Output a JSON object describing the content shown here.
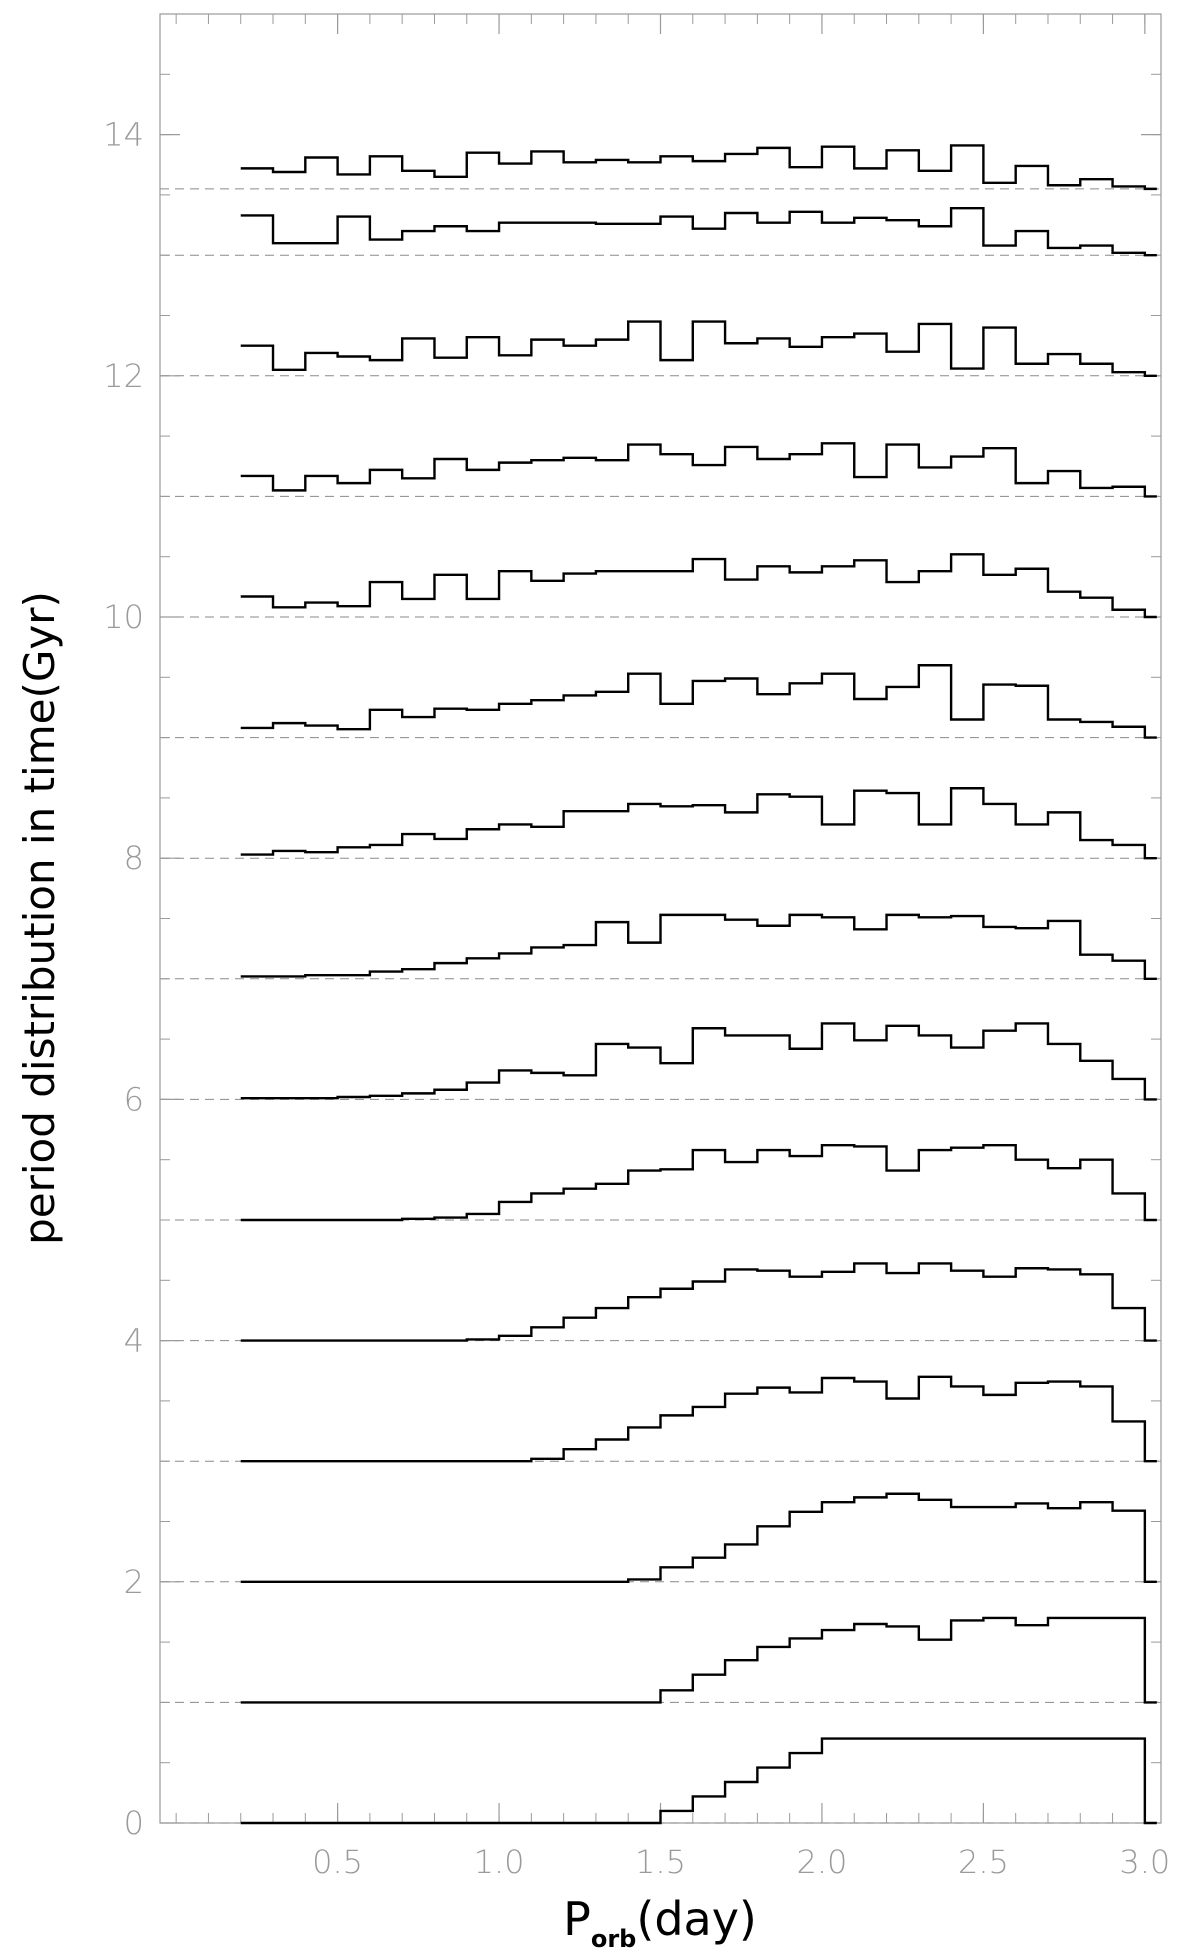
{
  "chart_data": {
    "type": "line",
    "style": "step histograms stacked at vertical offsets (one per time snapshot), each with a dashed baseline",
    "xlabel": "P",
    "xlabel_sub": "orb",
    "xlabel_unit": "(day)",
    "ylabel": "period distribution in time(Gyr)",
    "xlim": [
      -0.05,
      3.05
    ],
    "ylim": [
      0,
      15
    ],
    "grid": false,
    "x_ticks": [
      0.5,
      1.0,
      1.5,
      2.0,
      2.5,
      3.0
    ],
    "x_tick_labels": [
      "0.5",
      "1.0",
      "1.5",
      "2.0",
      "2.5",
      "3.0"
    ],
    "x_minor_step": 0.1,
    "y_ticks": [
      0,
      2,
      4,
      6,
      8,
      10,
      12,
      14
    ],
    "y_tick_labels": [
      "0",
      "2",
      "4",
      "6",
      "8",
      "10",
      "12",
      "14"
    ],
    "y_minor_step": 0.5,
    "bin_edges": [
      0.2,
      0.3,
      0.4,
      0.5,
      0.6,
      0.7,
      0.8,
      0.9,
      1.0,
      1.1,
      1.2,
      1.3,
      1.4,
      1.5,
      1.6,
      1.7,
      1.8,
      1.9,
      2.0,
      2.1,
      2.2,
      2.3,
      2.4,
      2.5,
      2.6,
      2.7,
      2.8,
      2.9,
      3.0
    ],
    "series": [
      {
        "offset": 0,
        "values": [
          0,
          0,
          0,
          0,
          0,
          0,
          0,
          0,
          0,
          0,
          0,
          0,
          0,
          0.1,
          0.22,
          0.34,
          0.46,
          0.58,
          0.7,
          0.7,
          0.7,
          0.7,
          0.7,
          0.7,
          0.7,
          0.7,
          0.7,
          0.7
        ]
      },
      {
        "offset": 1,
        "values": [
          0,
          0,
          0,
          0,
          0,
          0,
          0,
          0,
          0,
          0,
          0,
          0,
          0,
          0.1,
          0.23,
          0.35,
          0.46,
          0.53,
          0.6,
          0.65,
          0.63,
          0.52,
          0.68,
          0.7,
          0.64,
          0.7,
          0.7,
          0.7
        ]
      },
      {
        "offset": 2,
        "values": [
          0,
          0,
          0,
          0,
          0,
          0,
          0,
          0,
          0,
          0,
          0,
          0,
          0.02,
          0.12,
          0.2,
          0.31,
          0.46,
          0.58,
          0.66,
          0.7,
          0.73,
          0.68,
          0.62,
          0.62,
          0.65,
          0.61,
          0.66,
          0.59
        ]
      },
      {
        "offset": 3,
        "values": [
          0,
          0,
          0,
          0,
          0,
          0,
          0,
          0,
          0,
          0.02,
          0.1,
          0.18,
          0.28,
          0.38,
          0.45,
          0.56,
          0.61,
          0.57,
          0.69,
          0.66,
          0.52,
          0.7,
          0.62,
          0.55,
          0.65,
          0.66,
          0.62,
          0.33
        ]
      },
      {
        "offset": 4,
        "values": [
          0,
          0,
          0,
          0,
          0,
          0,
          0,
          0.01,
          0.04,
          0.11,
          0.19,
          0.27,
          0.36,
          0.43,
          0.49,
          0.59,
          0.58,
          0.53,
          0.57,
          0.64,
          0.56,
          0.64,
          0.58,
          0.53,
          0.6,
          0.59,
          0.55,
          0.27
        ]
      },
      {
        "offset": 5,
        "values": [
          0,
          0,
          0,
          0,
          0,
          0.01,
          0.02,
          0.05,
          0.15,
          0.22,
          0.26,
          0.3,
          0.41,
          0.42,
          0.58,
          0.48,
          0.58,
          0.53,
          0.62,
          0.61,
          0.41,
          0.58,
          0.6,
          0.62,
          0.5,
          0.43,
          0.5,
          0.22
        ]
      },
      {
        "offset": 6,
        "values": [
          0.01,
          0.01,
          0.01,
          0.02,
          0.03,
          0.05,
          0.08,
          0.14,
          0.24,
          0.22,
          0.2,
          0.46,
          0.43,
          0.3,
          0.59,
          0.53,
          0.53,
          0.42,
          0.63,
          0.49,
          0.61,
          0.53,
          0.43,
          0.57,
          0.63,
          0.46,
          0.32,
          0.17
        ]
      },
      {
        "offset": 7,
        "values": [
          0.02,
          0.02,
          0.03,
          0.03,
          0.06,
          0.08,
          0.13,
          0.17,
          0.21,
          0.26,
          0.28,
          0.47,
          0.3,
          0.53,
          0.53,
          0.49,
          0.44,
          0.53,
          0.51,
          0.41,
          0.53,
          0.51,
          0.52,
          0.43,
          0.42,
          0.48,
          0.2,
          0.15
        ]
      },
      {
        "offset": 8,
        "values": [
          0.03,
          0.06,
          0.05,
          0.09,
          0.11,
          0.2,
          0.16,
          0.24,
          0.28,
          0.26,
          0.39,
          0.39,
          0.45,
          0.43,
          0.44,
          0.38,
          0.53,
          0.51,
          0.28,
          0.56,
          0.54,
          0.28,
          0.58,
          0.45,
          0.28,
          0.38,
          0.15,
          0.11
        ]
      },
      {
        "offset": 9,
        "values": [
          0.08,
          0.12,
          0.1,
          0.07,
          0.23,
          0.17,
          0.24,
          0.23,
          0.28,
          0.31,
          0.35,
          0.38,
          0.53,
          0.28,
          0.47,
          0.49,
          0.36,
          0.45,
          0.53,
          0.32,
          0.42,
          0.6,
          0.15,
          0.44,
          0.43,
          0.15,
          0.13,
          0.09
        ]
      },
      {
        "offset": 10,
        "values": [
          0.17,
          0.08,
          0.12,
          0.09,
          0.29,
          0.15,
          0.35,
          0.15,
          0.38,
          0.3,
          0.36,
          0.38,
          0.38,
          0.38,
          0.48,
          0.31,
          0.42,
          0.37,
          0.42,
          0.47,
          0.29,
          0.38,
          0.52,
          0.35,
          0.4,
          0.21,
          0.16,
          0.06
        ]
      },
      {
        "offset": 11,
        "values": [
          0.17,
          0.05,
          0.17,
          0.11,
          0.22,
          0.15,
          0.31,
          0.22,
          0.28,
          0.3,
          0.32,
          0.3,
          0.43,
          0.35,
          0.26,
          0.41,
          0.31,
          0.35,
          0.44,
          0.16,
          0.43,
          0.24,
          0.33,
          0.4,
          0.11,
          0.21,
          0.07,
          0.08
        ]
      },
      {
        "offset": 12,
        "values": [
          0.25,
          0.05,
          0.19,
          0.16,
          0.13,
          0.31,
          0.15,
          0.32,
          0.17,
          0.3,
          0.25,
          0.3,
          0.45,
          0.13,
          0.45,
          0.27,
          0.31,
          0.24,
          0.32,
          0.35,
          0.2,
          0.43,
          0.06,
          0.4,
          0.1,
          0.18,
          0.1,
          0.03
        ]
      },
      {
        "offset": 13,
        "values": [
          0.33,
          0.1,
          0.1,
          0.32,
          0.13,
          0.2,
          0.24,
          0.2,
          0.27,
          0.27,
          0.27,
          0.26,
          0.26,
          0.32,
          0.22,
          0.35,
          0.27,
          0.36,
          0.27,
          0.31,
          0.29,
          0.24,
          0.39,
          0.08,
          0.2,
          0.06,
          0.08,
          0.02
        ]
      },
      {
        "offset": 13.55,
        "values": [
          0.17,
          0.14,
          0.26,
          0.12,
          0.27,
          0.15,
          0.1,
          0.3,
          0.21,
          0.31,
          0.22,
          0.24,
          0.22,
          0.27,
          0.23,
          0.29,
          0.34,
          0.18,
          0.35,
          0.17,
          0.32,
          0.15,
          0.36,
          0.05,
          0.19,
          0.03,
          0.08,
          0.02
        ]
      }
    ]
  }
}
